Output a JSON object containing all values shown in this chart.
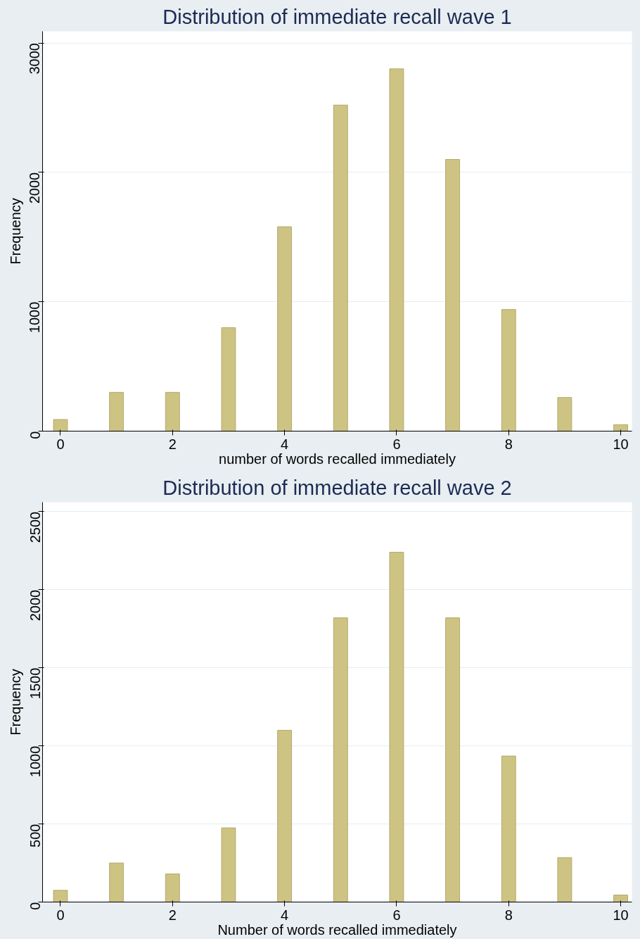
{
  "chart_data": [
    {
      "type": "bar",
      "title": "Distribution of immediate recall wave 1",
      "xlabel": "number of words recalled immediately",
      "ylabel": "Frequency",
      "x": [
        0,
        1,
        2,
        3,
        4,
        5,
        6,
        7,
        8,
        9,
        10
      ],
      "values": [
        90,
        300,
        300,
        800,
        1580,
        2520,
        2800,
        2100,
        940,
        260,
        50
      ],
      "color": "#cdc383",
      "xlim": [
        -0.32,
        10.2
      ],
      "ylim": [
        0,
        3090
      ],
      "xticks": [
        0,
        2,
        4,
        6,
        8,
        10
      ],
      "yticks": [
        0,
        1000,
        2000,
        3000
      ],
      "grid": "y"
    },
    {
      "type": "bar",
      "title": "Distribution of immediate recall wave 2",
      "xlabel": "Number of words recalled immediately",
      "ylabel": "Frequency",
      "x": [
        0,
        1,
        2,
        3,
        4,
        5,
        6,
        7,
        8,
        9,
        10
      ],
      "values": [
        75,
        250,
        180,
        475,
        1100,
        1820,
        2240,
        1820,
        935,
        285,
        45
      ],
      "color": "#cdc383",
      "xlim": [
        -0.32,
        10.2
      ],
      "ylim": [
        0,
        2560
      ],
      "xticks": [
        0,
        2,
        4,
        6,
        8,
        10
      ],
      "yticks": [
        0,
        500,
        1000,
        1500,
        2000,
        2500
      ],
      "grid": "y"
    }
  ]
}
